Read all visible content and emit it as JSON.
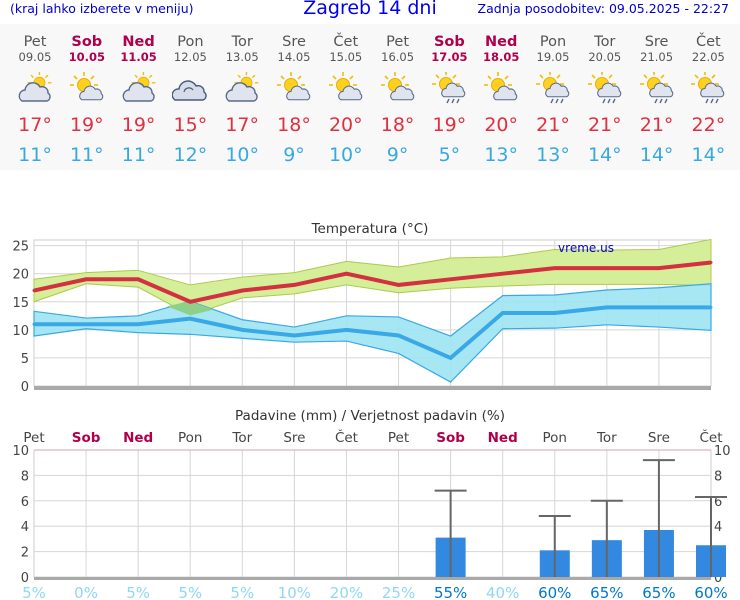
{
  "header": {
    "menu_hint": "(kraj lahko izberete v meniju)",
    "title": "Zagreb 14 dni",
    "updated": "Zadnja posodobitev: 09.05.2025 - 22:27"
  },
  "days": [
    {
      "name": "Pet",
      "date": "09.05",
      "max": "17°",
      "min": "11°",
      "weekend": false,
      "icon": "partly-cloudy-sun-icon"
    },
    {
      "name": "Sob",
      "date": "10.05",
      "max": "19°",
      "min": "11°",
      "weekend": true,
      "icon": "sun-cloud-icon"
    },
    {
      "name": "Ned",
      "date": "11.05",
      "max": "19°",
      "min": "11°",
      "weekend": true,
      "icon": "partly-cloudy-sun-icon"
    },
    {
      "name": "Pon",
      "date": "12.05",
      "max": "15°",
      "min": "12°",
      "weekend": false,
      "icon": "cloudy-icon"
    },
    {
      "name": "Tor",
      "date": "13.05",
      "max": "17°",
      "min": "10°",
      "weekend": false,
      "icon": "partly-cloudy-sun-icon"
    },
    {
      "name": "Sre",
      "date": "14.05",
      "max": "18°",
      "min": "9°",
      "weekend": false,
      "icon": "sun-cloud-icon"
    },
    {
      "name": "Čet",
      "date": "15.05",
      "max": "20°",
      "min": "10°",
      "weekend": false,
      "icon": "sun-cloud-icon"
    },
    {
      "name": "Pet",
      "date": "16.05",
      "max": "18°",
      "min": "9°",
      "weekend": false,
      "icon": "sun-cloud-icon"
    },
    {
      "name": "Sob",
      "date": "17.05",
      "max": "19°",
      "min": "5°",
      "weekend": true,
      "icon": "sun-cloud-rain-icon"
    },
    {
      "name": "Ned",
      "date": "18.05",
      "max": "20°",
      "min": "13°",
      "weekend": true,
      "icon": "sun-cloud-icon"
    },
    {
      "name": "Pon",
      "date": "19.05",
      "max": "21°",
      "min": "13°",
      "weekend": false,
      "icon": "sun-cloud-rain-icon"
    },
    {
      "name": "Tor",
      "date": "20.05",
      "max": "21°",
      "min": "14°",
      "weekend": false,
      "icon": "sun-cloud-rain-icon"
    },
    {
      "name": "Sre",
      "date": "21.05",
      "max": "21°",
      "min": "14°",
      "weekend": false,
      "icon": "sun-cloud-rain-icon"
    },
    {
      "name": "Čet",
      "date": "22.05",
      "max": "22°",
      "min": "14°",
      "weekend": false,
      "icon": "sun-cloud-rain-icon"
    }
  ],
  "colors": {
    "max_text": "#e03040",
    "min_text": "#38a8e0",
    "max_line": "#d33040",
    "min_line": "#3aa8e6",
    "max_band": "#d4ee9a",
    "min_band": "#9ce4f2",
    "overlap": "#8ed08a",
    "bar": "#3388e0",
    "weekend": "#b0004c",
    "prob_high": "#0077cc",
    "prob_low": "#90d8f0"
  },
  "chart_data": [
    {
      "type": "line",
      "title": "Temperatura (°C)",
      "watermark": "vreme.us",
      "ylim": [
        0,
        26
      ],
      "yticks": [
        0,
        5,
        10,
        15,
        20,
        25
      ],
      "x": [
        "09.05",
        "10.05",
        "11.05",
        "12.05",
        "13.05",
        "14.05",
        "15.05",
        "16.05",
        "17.05",
        "18.05",
        "19.05",
        "20.05",
        "21.05",
        "22.05"
      ],
      "series": [
        {
          "role": "max",
          "values": [
            17,
            19,
            19,
            15,
            17,
            18,
            20,
            18,
            19,
            20,
            21,
            21,
            21,
            22
          ],
          "upper": [
            19,
            20.2,
            20.6,
            18,
            19.4,
            20.2,
            22.2,
            21.2,
            22.8,
            23,
            24.3,
            24.2,
            24.3,
            26.1
          ],
          "lower": [
            15,
            18.2,
            17.6,
            12.6,
            15.7,
            16.4,
            18,
            16.6,
            17.4,
            17.8,
            18.1,
            18.1,
            18.1,
            17.9
          ]
        },
        {
          "role": "min",
          "values": [
            11,
            11,
            11,
            12,
            10,
            9,
            10,
            9,
            5,
            13,
            13,
            14,
            14,
            14
          ],
          "upper": [
            13.3,
            12.1,
            12.5,
            15.1,
            11.8,
            10.5,
            12.5,
            12.3,
            8.9,
            16.1,
            16.2,
            17.1,
            17.5,
            18.2
          ],
          "lower": [
            8.9,
            10.2,
            9.5,
            9.2,
            8.5,
            7.8,
            8,
            5.8,
            0.7,
            10.2,
            10.3,
            10.9,
            10.5,
            9.9
          ]
        }
      ]
    },
    {
      "type": "bar",
      "title": "Padavine (mm) / Verjetnost padavin (%)",
      "categories": [
        "Pet",
        "Sob",
        "Ned",
        "Pon",
        "Tor",
        "Sre",
        "Čet",
        "Pet",
        "Sob",
        "Ned",
        "Pon",
        "Tor",
        "Sre",
        "Čet"
      ],
      "weekend": [
        false,
        true,
        true,
        false,
        false,
        false,
        false,
        false,
        true,
        true,
        false,
        false,
        false,
        false
      ],
      "values": [
        0,
        0,
        0,
        0,
        0,
        0,
        0,
        0,
        3.1,
        0,
        2.1,
        2.9,
        3.7,
        2.5
      ],
      "error_upper": [
        null,
        null,
        null,
        null,
        null,
        null,
        null,
        null,
        6.8,
        null,
        4.8,
        6,
        9.2,
        6.3
      ],
      "probability": [
        "5%",
        "0%",
        "5%",
        "5%",
        "5%",
        "10%",
        "20%",
        "25%",
        "55%",
        "40%",
        "60%",
        "65%",
        "65%",
        "60%"
      ],
      "ylim": [
        0,
        10
      ],
      "yticks": [
        0,
        2,
        4,
        6,
        8,
        10
      ]
    }
  ]
}
